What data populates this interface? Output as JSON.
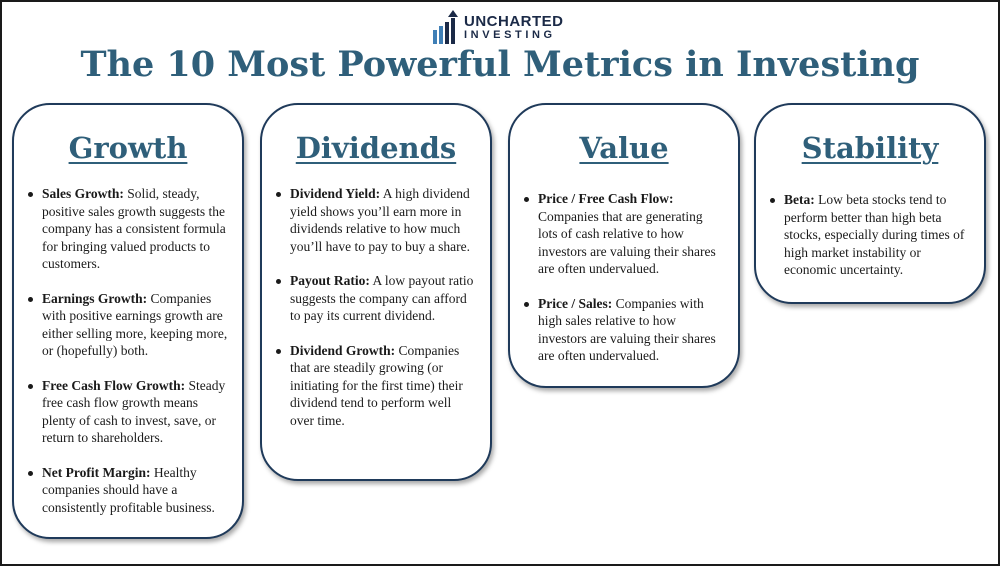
{
  "logo": {
    "line1": "UNCHARTED",
    "line2": "INVESTING"
  },
  "title": "The 10 Most Powerful Metrics in Investing",
  "colors": {
    "title": "#2f5f7a",
    "border": "#1f3a5a",
    "logo": "#1b2a47"
  },
  "cards": [
    {
      "title": "Growth",
      "items": [
        {
          "name": "Sales Growth:",
          "text": "Solid, steady, positive sales growth suggests the company has a consistent formula for bringing valued products to customers."
        },
        {
          "name": "Earnings Growth:",
          "text": "Companies with positive earnings growth are either selling more, keeping more, or (hopefully) both."
        },
        {
          "name": "Free Cash Flow Growth:",
          "text": "Steady free cash flow growth means plenty of cash to invest, save, or return to shareholders."
        },
        {
          "name": "Net Profit Margin:",
          "text": "Healthy companies should have a consistently profitable business."
        }
      ]
    },
    {
      "title": "Dividends",
      "items": [
        {
          "name": "Dividend Yield:",
          "text": "A high dividend yield shows you’ll earn more in dividends relative to how much you’ll have to pay to buy a share."
        },
        {
          "name": "Payout Ratio:",
          "text": "A low payout ratio suggests the company can afford to pay its current dividend."
        },
        {
          "name": "Dividend Growth:",
          "text": "Companies that are steadily growing (or initiating for the first time) their dividend tend to perform well over time."
        }
      ]
    },
    {
      "title": "Value",
      "items": [
        {
          "name": "Price / Free Cash Flow:",
          "text": "Companies that are generating lots of cash relative to how investors are valuing their shares are often undervalued."
        },
        {
          "name": "Price / Sales:",
          "text": "Companies with high sales relative to how investors are valuing their shares are often undervalued."
        }
      ]
    },
    {
      "title": "Stability",
      "items": [
        {
          "name": "Beta:",
          "text": "Low beta stocks tend to perform better than high beta stocks, especially during times of high market instability or economic uncertainty."
        }
      ]
    }
  ]
}
